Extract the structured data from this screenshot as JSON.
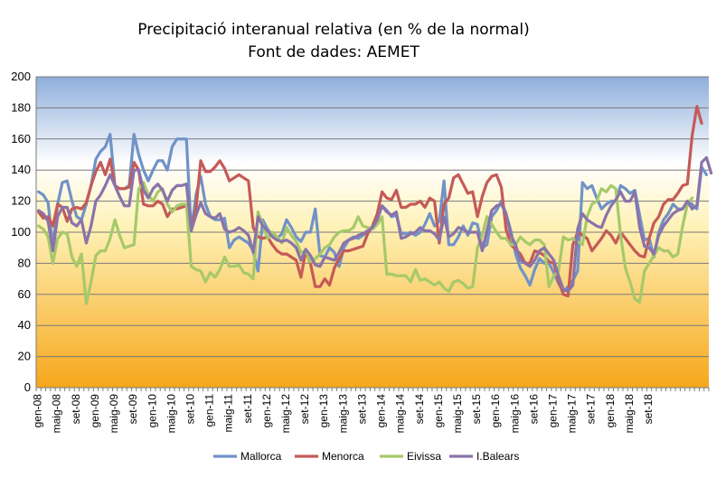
{
  "chart_data": {
    "type": "line",
    "title": "Precipitació interanual relativa (en % de la normal)",
    "subtitle": "Font de dades: AEMET",
    "xlabel": "",
    "ylabel": "",
    "ylim": [
      0,
      200
    ],
    "yticks": [
      0,
      20,
      40,
      60,
      80,
      100,
      120,
      140,
      160,
      180,
      200
    ],
    "grid": true,
    "legend_position": "bottom",
    "background": "vertical gradient from blue (top) through white to orange (bottom)",
    "colors": {
      "Mallorca": "#7092c8",
      "Menorca": "#c55a57",
      "Eivissa": "#a6c96a",
      "I.Balears": "#8a73aa"
    },
    "xtick_labels": [
      "gen-08",
      "maig-08",
      "set-08",
      "gen-09",
      "maig-09",
      "set-09",
      "gen-10",
      "maig-10",
      "set-10",
      "gen-11",
      "maig-11",
      "set-11",
      "gen-12",
      "maig-12",
      "set-12",
      "gen-13",
      "maig-13",
      "set-13",
      "gen-14",
      "maig-14",
      "set-14",
      "gen-15",
      "maig-15",
      "set-15",
      "gen-16",
      "maig-16",
      "set-16",
      "gen-17",
      "maig-17",
      "set-17",
      "gen-18",
      "maig-18",
      "set-18"
    ],
    "x_start": "gen-08",
    "x_step": "1 month",
    "series": [
      {
        "name": "Mallorca",
        "values": [
          126,
          124,
          119,
          90,
          118,
          132,
          133,
          120,
          110,
          108,
          118,
          130,
          147,
          152,
          155,
          163,
          130,
          128,
          128,
          130,
          163,
          150,
          140,
          133,
          140,
          146,
          146,
          140,
          155,
          160,
          160,
          160,
          101,
          124,
          136,
          118,
          110,
          108,
          108,
          109,
          90,
          95,
          97,
          95,
          93,
          88,
          75,
          108,
          102,
          98,
          96,
          99,
          108,
          103,
          97,
          94,
          100,
          100,
          115,
          85,
          84,
          90,
          87,
          78,
          90,
          95,
          97,
          96,
          98,
          100,
          103,
          110,
          117,
          114,
          110,
          111,
          99,
          99,
          100,
          98,
          100,
          105,
          112,
          104,
          107,
          133,
          92,
          92,
          97,
          104,
          98,
          106,
          105,
          90,
          92,
          110,
          114,
          120,
          112,
          101,
          86,
          77,
          72,
          66,
          76,
          83,
          80,
          80,
          74,
          67,
          62,
          65,
          69,
          75,
          132,
          128,
          130,
          122,
          115,
          118,
          120,
          120,
          130,
          128,
          125,
          127,
          111,
          95,
          96,
          84,
          100,
          108,
          112,
          118,
          115,
          115,
          120,
          118,
          115,
          142,
          137
        ]
      },
      {
        "name": "Menorca",
        "values": [
          113,
          109,
          110,
          104,
          118,
          116,
          107,
          115,
          116,
          115,
          119,
          130,
          139,
          145,
          137,
          147,
          130,
          128,
          128,
          129,
          145,
          140,
          118,
          117,
          117,
          120,
          118,
          110,
          115,
          115,
          116,
          117,
          102,
          115,
          146,
          139,
          139,
          142,
          146,
          141,
          133,
          135,
          137,
          135,
          133,
          103,
          97,
          96,
          97,
          92,
          88,
          86,
          86,
          84,
          82,
          71,
          88,
          80,
          65,
          65,
          70,
          66,
          77,
          83,
          88,
          88,
          89,
          90,
          91,
          99,
          104,
          112,
          126,
          122,
          121,
          127,
          116,
          116,
          118,
          118,
          120,
          116,
          122,
          120,
          93,
          118,
          122,
          135,
          137,
          131,
          125,
          126,
          110,
          123,
          132,
          136,
          137,
          129,
          102,
          92,
          89,
          86,
          80,
          80,
          88,
          87,
          85,
          81,
          80,
          69,
          60,
          59,
          92,
          100,
          98,
          96,
          88,
          92,
          96,
          101,
          98,
          93,
          100,
          96,
          92,
          88,
          85,
          84,
          96,
          106,
          110,
          118,
          121,
          121,
          125,
          130,
          131,
          162,
          181,
          170
        ]
      },
      {
        "name": "Eivissa",
        "values": [
          104,
          102,
          97,
          80,
          96,
          100,
          99,
          84,
          78,
          86,
          54,
          68,
          85,
          88,
          88,
          96,
          108,
          98,
          90,
          91,
          92,
          128,
          132,
          124,
          120,
          126,
          128,
          118,
          113,
          117,
          118,
          118,
          78,
          76,
          75,
          68,
          74,
          71,
          76,
          84,
          78,
          78,
          79,
          74,
          73,
          70,
          113,
          105,
          96,
          100,
          97,
          93,
          103,
          98,
          94,
          87,
          88,
          81,
          83,
          86,
          90,
          92,
          97,
          100,
          101,
          101,
          103,
          110,
          104,
          103,
          102,
          105,
          110,
          73,
          73,
          72,
          72,
          72,
          68,
          76,
          69,
          70,
          68,
          66,
          68,
          64,
          62,
          68,
          69,
          67,
          64,
          65,
          90,
          98,
          110,
          105,
          100,
          96,
          96,
          92,
          92,
          97,
          94,
          92,
          95,
          95,
          92,
          65,
          72,
          75,
          97,
          95,
          96,
          94,
          92,
          110,
          118,
          120,
          128,
          126,
          130,
          128,
          98,
          77,
          68,
          57,
          55,
          75,
          80,
          85,
          90,
          88,
          88,
          84,
          86,
          104,
          118,
          122
        ]
      },
      {
        "name": "I.Balears",
        "values": [
          114,
          112,
          107,
          88,
          110,
          116,
          116,
          106,
          104,
          108,
          93,
          104,
          120,
          124,
          130,
          137,
          130,
          123,
          117,
          117,
          140,
          140,
          127,
          122,
          128,
          131,
          127,
          120,
          127,
          130,
          130,
          131,
          101,
          111,
          119,
          112,
          110,
          109,
          112,
          102,
          100,
          101,
          103,
          101,
          98,
          87,
          110,
          104,
          101,
          97,
          95,
          94,
          95,
          93,
          90,
          82,
          89,
          85,
          79,
          78,
          84,
          83,
          82,
          87,
          93,
          95,
          96,
          98,
          99,
          101,
          103,
          108,
          117,
          113,
          111,
          113,
          96,
          97,
          99,
          100,
          103,
          101,
          101,
          99,
          95,
          110,
          97,
          99,
          103,
          102,
          100,
          100,
          100,
          88,
          101,
          114,
          117,
          118,
          112,
          98,
          92,
          82,
          80,
          78,
          82,
          88,
          90,
          86,
          82,
          72,
          63,
          62,
          66,
          102,
          112,
          108,
          106,
          104,
          103,
          111,
          117,
          121,
          126,
          120,
          120,
          126,
          103,
          91,
          90,
          86,
          98,
          104,
          108,
          112,
          114,
          115,
          120,
          115,
          117,
          145,
          148,
          138
        ]
      }
    ]
  }
}
